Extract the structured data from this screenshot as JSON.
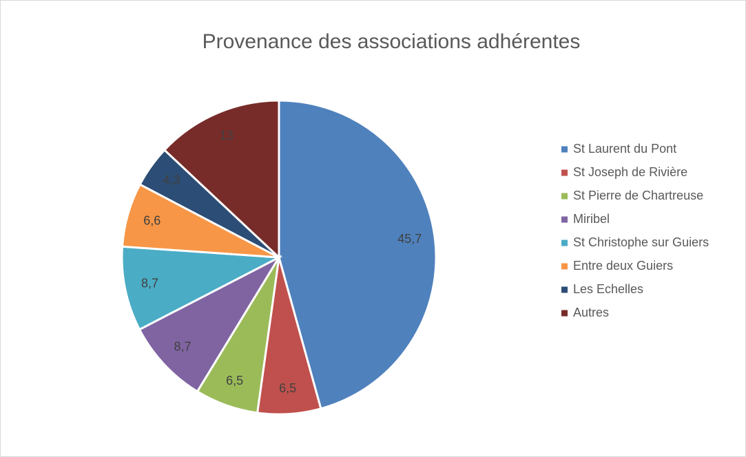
{
  "chart_data": {
    "type": "pie",
    "title": "Provenance des associations adhérentes",
    "categories": [
      "St Laurent du Pont",
      "St Joseph de Rivière",
      "St Pierre de Chartreuse",
      "Miribel",
      "St Christophe sur Guiers",
      "Entre deux Guiers",
      "Les Echelles",
      "Autres"
    ],
    "values": [
      45.7,
      6.5,
      6.5,
      8.7,
      8.7,
      6.6,
      4.3,
      13
    ],
    "value_labels": [
      "45,7",
      "6,5",
      "6,5",
      "8,7",
      "8,7",
      "6,6",
      "4,3",
      "13"
    ],
    "colors": [
      "#4f81bd",
      "#c0504d",
      "#9bbb59",
      "#8064a2",
      "#4bacc6",
      "#f79646",
      "#2c4d75",
      "#772c2a"
    ],
    "legend": "right"
  }
}
